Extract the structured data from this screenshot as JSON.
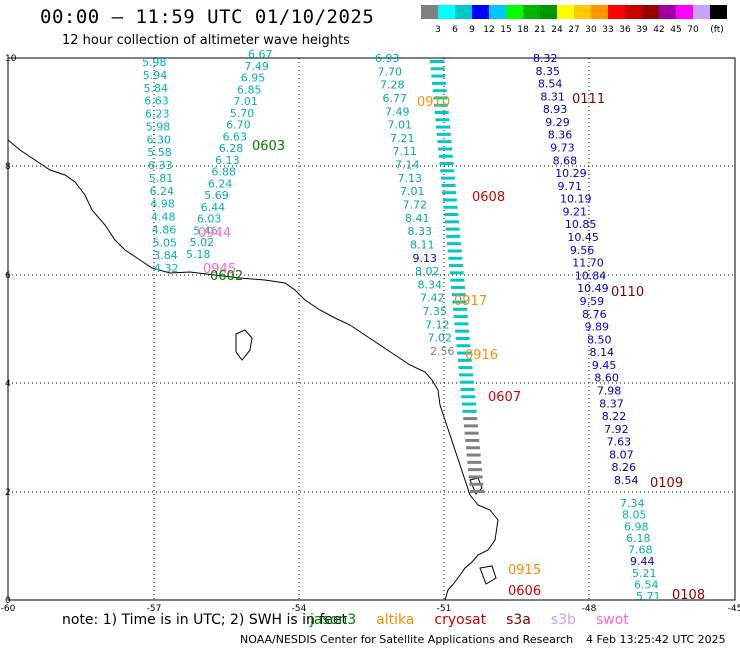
{
  "header": {
    "title": "00:00 – 11:59 UTC 01/10/2025",
    "subtitle": "12 hour collection of altimeter wave heights"
  },
  "color_scale": {
    "unit": "(ft)",
    "ticks": [
      "3",
      "6",
      "9",
      "12",
      "15",
      "18",
      "21",
      "24",
      "27",
      "30",
      "33",
      "36",
      "39",
      "42",
      "45",
      "70"
    ],
    "colors": [
      "#808080",
      "#00ffff",
      "#00c8c8",
      "#0000ff",
      "#00c8ff",
      "#00ff00",
      "#00b400",
      "#009600",
      "#ffff00",
      "#ffc800",
      "#ff9600",
      "#ff0000",
      "#c80000",
      "#960000",
      "#a000a0",
      "#ff00ff",
      "#c8a0ff",
      "#000000"
    ]
  },
  "axes": {
    "x_ticks": [
      "-60",
      "-57",
      "-54",
      "-51",
      "-48",
      "-45"
    ],
    "y_ticks": [
      "10",
      "8",
      "6",
      "4",
      "2",
      "0"
    ]
  },
  "passes": [
    {
      "label": "0111",
      "color": "#8b0000"
    },
    {
      "label": "0603",
      "color": "#008000"
    },
    {
      "label": "0910",
      "color": "#ff8c00"
    },
    {
      "label": "0608",
      "color": "#d00000"
    },
    {
      "label": "0944",
      "color": "#ff66cc"
    },
    {
      "label": "0945",
      "color": "#ff66cc"
    },
    {
      "label": "0602",
      "color": "#008000"
    },
    {
      "label": "0110",
      "color": "#8b0000"
    },
    {
      "label": "0917",
      "color": "#ff8c00"
    },
    {
      "label": "0916",
      "color": "#ff8c00"
    },
    {
      "label": "0607",
      "color": "#d00000"
    },
    {
      "label": "0109",
      "color": "#8b0000"
    },
    {
      "label": "0915",
      "color": "#ff8c00"
    },
    {
      "label": "0606",
      "color": "#d00000"
    },
    {
      "label": "0108",
      "color": "#8b0000"
    }
  ],
  "tracks": {
    "track_a": [
      "5.98",
      "5.94",
      "5.84",
      "6.63",
      "6.23",
      "5.98",
      "6.30",
      "5.58",
      "6.33",
      "5.81",
      "6.24",
      "4.98",
      "4.48",
      "4.86",
      "5.05",
      "3.84",
      "4.32"
    ],
    "track_b": [
      "6.67",
      "7.49",
      "6.95",
      "6.85",
      "7.01",
      "5.70",
      "6.70",
      "6.63",
      "6.28",
      "6.13",
      "6.88",
      "6.24",
      "5.69",
      "6.44",
      "6.03",
      "5.46",
      "5.02",
      "5.18"
    ],
    "track_c": [
      "6.93",
      "7.70",
      "7.28",
      "6.77",
      "7.49",
      "7.01",
      "7.21",
      "7.11",
      "7.14",
      "7.13",
      "7.01",
      "7.72",
      "8.41",
      "8.33",
      "8.11",
      "9.13",
      "8.02",
      "8.34",
      "7.42",
      "7.35",
      "7.12",
      "7.02",
      "2.56"
    ],
    "track_e": [
      "8.32",
      "8.35",
      "8.54",
      "8.31",
      "8.93",
      "9.29",
      "8.36",
      "9.73",
      "8.68",
      "10.29",
      "9.71",
      "10.19",
      "9.21",
      "10.85",
      "10.45",
      "9.56",
      "11.70",
      "10.84",
      "10.49",
      "9.59",
      "8.76",
      "9.89",
      "8.50",
      "8.14",
      "9.45",
      "8.60",
      "7.98",
      "8.37",
      "8.22",
      "7.92",
      "7.63",
      "8.07",
      "8.26",
      "8.54"
    ],
    "track_f": [
      "7.34",
      "8.05",
      "6.98",
      "6.18",
      "7.68",
      "9.44",
      "5.21",
      "6.54",
      "5.71"
    ]
  },
  "footer": {
    "note": "note:  1) Time is in UTC; 2) SWH is in feet",
    "satellites": [
      {
        "name": "jason3",
        "color": "#008000"
      },
      {
        "name": "altika",
        "color": "#ff8c00"
      },
      {
        "name": "cryosat",
        "color": "#d00000"
      },
      {
        "name": "s3a",
        "color": "#8b0000"
      },
      {
        "name": "s3b",
        "color": "#c8a0ff"
      },
      {
        "name": "swot",
        "color": "#ff66cc"
      }
    ],
    "credit": "NOAA/NESDIS Center for Satellite Applications and Research",
    "timestamp": "4 Feb 13:25:42 UTC 2025"
  }
}
